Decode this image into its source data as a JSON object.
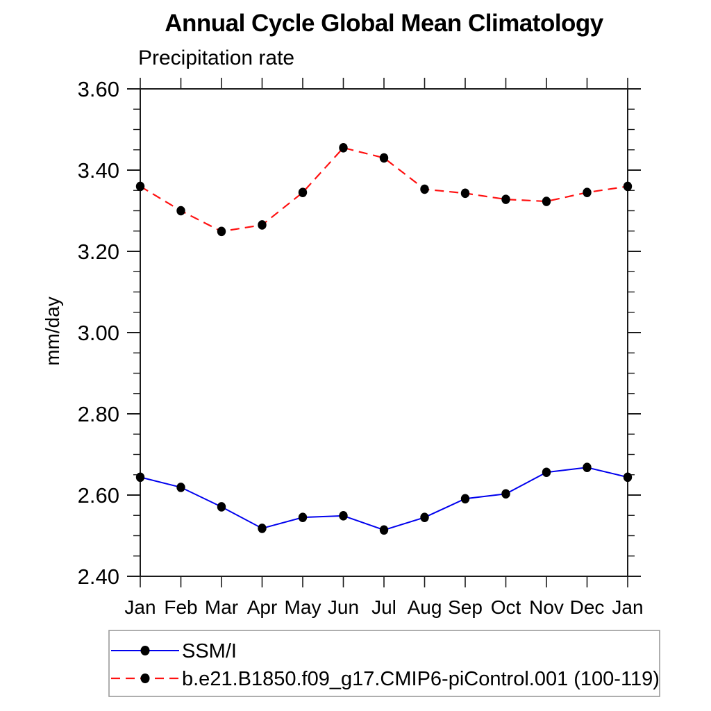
{
  "chart_data": {
    "type": "line",
    "title": "Annual Cycle Global Mean Climatology",
    "subtitle": "Precipitation rate",
    "ylabel": "mm/day",
    "categories": [
      "Jan",
      "Feb",
      "Mar",
      "Apr",
      "May",
      "Jun",
      "Jul",
      "Aug",
      "Sep",
      "Oct",
      "Nov",
      "Dec",
      "Jan"
    ],
    "ylim": [
      2.4,
      3.6
    ],
    "ytick_major": 0.2,
    "ytick_minor": 0.05,
    "ytick_labels": [
      "2.40",
      "2.60",
      "2.80",
      "3.00",
      "3.20",
      "3.40",
      "3.60"
    ],
    "grid": false,
    "legend": {
      "position": "bottom-left",
      "border_color": "#9a9a9a"
    },
    "series": [
      {
        "name": "SSM/I",
        "color": "#0000ee",
        "line_style": "solid",
        "marker": "filled-circle",
        "marker_color": "#000000",
        "values": [
          2.644,
          2.619,
          2.571,
          2.518,
          2.545,
          2.549,
          2.514,
          2.545,
          2.591,
          2.603,
          2.656,
          2.668,
          2.644
        ]
      },
      {
        "name": "b.e21.B1850.f09_g17.CMIP6-piControl.001 (100-119)",
        "color": "#ff1111",
        "line_style": "dashed",
        "marker": "filled-circle",
        "marker_color": "#000000",
        "values": [
          3.36,
          3.3,
          3.249,
          3.265,
          3.345,
          3.455,
          3.43,
          3.353,
          3.343,
          3.328,
          3.323,
          3.345,
          3.36
        ]
      }
    ]
  }
}
